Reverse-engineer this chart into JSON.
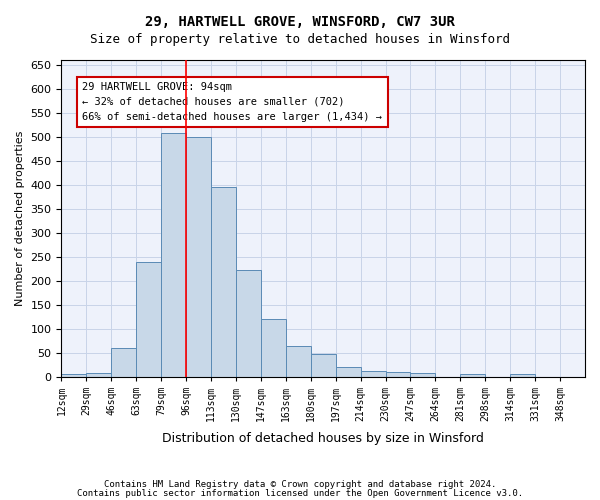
{
  "title_line1": "29, HARTWELL GROVE, WINSFORD, CW7 3UR",
  "title_line2": "Size of property relative to detached houses in Winsford",
  "xlabel": "Distribution of detached houses by size in Winsford",
  "ylabel": "Number of detached properties",
  "footer_line1": "Contains HM Land Registry data © Crown copyright and database right 2024.",
  "footer_line2": "Contains public sector information licensed under the Open Government Licence v3.0.",
  "bin_labels": [
    "12sqm",
    "29sqm",
    "46sqm",
    "63sqm",
    "79sqm",
    "96sqm",
    "113sqm",
    "130sqm",
    "147sqm",
    "163sqm",
    "180sqm",
    "197sqm",
    "214sqm",
    "230sqm",
    "247sqm",
    "264sqm",
    "281sqm",
    "298sqm",
    "314sqm",
    "331sqm",
    "348sqm"
  ],
  "bar_values": [
    5,
    8,
    60,
    238,
    507,
    500,
    396,
    223,
    120,
    63,
    47,
    20,
    12,
    9,
    8,
    0,
    5,
    0,
    6,
    0,
    0
  ],
  "bar_color": "#c8d8e8",
  "bar_edge_color": "#5a8ab5",
  "grid_color": "#c8d4e8",
  "background_color": "#eef2fb",
  "annotation_box_color": "#cc0000",
  "vertical_line_x": 5,
  "annotation_text_line1": "29 HARTWELL GROVE: 94sqm",
  "annotation_text_line2": "← 32% of detached houses are smaller (702)",
  "annotation_text_line3": "66% of semi-detached houses are larger (1,434) →",
  "ylim": [
    0,
    660
  ],
  "yticks": [
    0,
    50,
    100,
    150,
    200,
    250,
    300,
    350,
    400,
    450,
    500,
    550,
    600,
    650
  ]
}
